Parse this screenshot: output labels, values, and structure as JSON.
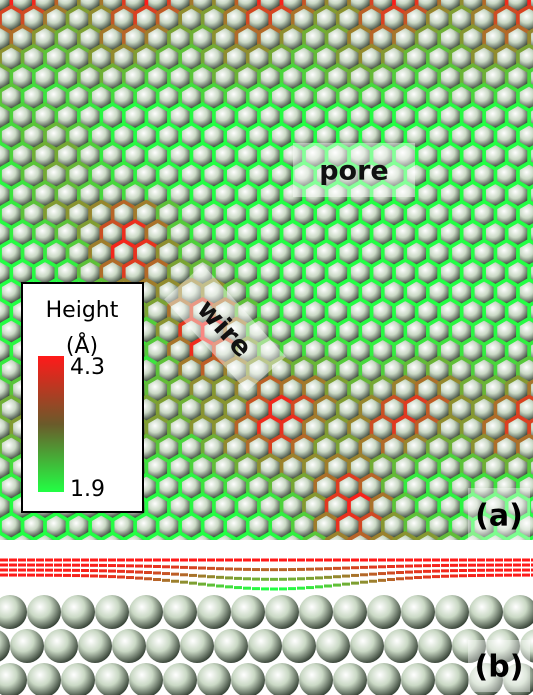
{
  "figure": {
    "panel_a": {
      "label": "(a)",
      "annotations": [
        "pore",
        "wire"
      ],
      "colorbar": {
        "title_lines": [
          "Height",
          "(Å)"
        ],
        "max": 4.3,
        "min": 1.9,
        "max_color": "#ff1a1a",
        "min_color": "#22ff44"
      }
    },
    "panel_b": {
      "label": "(b)"
    }
  }
}
